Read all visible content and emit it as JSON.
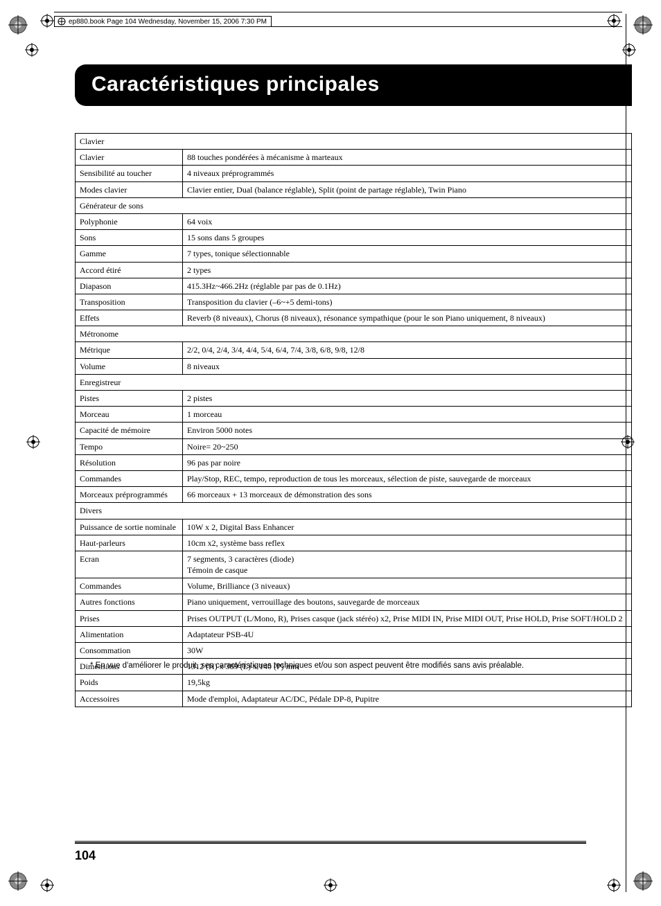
{
  "header_text": "ep880.book  Page 104  Wednesday, November 15, 2006  7:30 PM",
  "title": "Caractéristiques principales",
  "sections": [
    {
      "header": "Clavier",
      "rows": [
        {
          "label": "Clavier",
          "value": "88 touches pondérées à mécanisme à marteaux"
        },
        {
          "label": "Sensibilité au toucher",
          "value": "4 niveaux préprogrammés"
        },
        {
          "label": "Modes clavier",
          "value": "Clavier entier, Dual (balance réglable), Split (point de partage réglable), Twin Piano"
        }
      ]
    },
    {
      "header": "Générateur de sons",
      "rows": [
        {
          "label": "Polyphonie",
          "value": "64 voix"
        },
        {
          "label": "Sons",
          "value": "15 sons dans 5 groupes"
        },
        {
          "label": "Gamme",
          "value": "7 types, tonique sélectionnable"
        },
        {
          "label": "Accord étiré",
          "value": "2 types"
        },
        {
          "label": "Diapason",
          "value": "415.3Hz~466.2Hz (réglable par pas de 0.1Hz)"
        },
        {
          "label": "Transposition",
          "value": "Transposition du clavier (–6~+5 demi-tons)"
        },
        {
          "label": "Effets",
          "value": "Reverb (8 niveaux), Chorus (8 niveaux), résonance sympathique (pour le son Piano uniquement, 8 niveaux)"
        }
      ]
    },
    {
      "header": "Métronome",
      "rows": [
        {
          "label": "Métrique",
          "value": "2/2, 0/4, 2/4, 3/4, 4/4, 5/4, 6/4, 7/4, 3/8, 6/8, 9/8, 12/8"
        },
        {
          "label": "Volume",
          "value": "8 niveaux"
        }
      ]
    },
    {
      "header": "Enregistreur",
      "rows": [
        {
          "label": "Pistes",
          "value": "2 pistes"
        },
        {
          "label": "Morceau",
          "value": "1 morceau"
        },
        {
          "label": "Capacité de mémoire",
          "value": "Environ 5000 notes"
        },
        {
          "label": "Tempo",
          "value": "Noire= 20~250"
        },
        {
          "label": "Résolution",
          "value": "96 pas par noire"
        },
        {
          "label": "Commandes",
          "value": "Play/Stop, REC, tempo, reproduction de tous les morceaux, sélection de piste, sauvegarde de morceaux"
        },
        {
          "label": "Morceaux préprogrammés",
          "value": "66 morceaux + 13 morceaux de démonstration des sons"
        }
      ]
    },
    {
      "header": "Divers",
      "rows": [
        {
          "label": "Puissance de sortie nominale",
          "value": "10W x 2, Digital Bass Enhancer"
        },
        {
          "label": "Haut-parleurs",
          "value": "10cm x2, système bass reflex"
        },
        {
          "label": "Ecran",
          "value": "7 segments, 3 caractères (diode)\nTémoin de casque"
        },
        {
          "label": "Commandes",
          "value": "Volume, Brilliance (3 niveaux)"
        },
        {
          "label": "Autres fonctions",
          "value": "Piano uniquement, verrouillage des boutons, sauvegarde de morceaux"
        },
        {
          "label": "Prises",
          "value": "Prises OUTPUT (L/Mono, R), Prises casque (jack stéréo) x2, Prise MIDI IN, Prise MIDI OUT, Prise HOLD, Prise SOFT/HOLD 2"
        },
        {
          "label": "Alimentation",
          "value": "Adaptateur PSB-4U"
        },
        {
          "label": "Consommation",
          "value": "30W"
        },
        {
          "label": "Dimensions",
          "value": "1312 (H) x 389 (L) x 140 (P) mm"
        },
        {
          "label": "Poids",
          "value": "19,5kg"
        },
        {
          "label": "Accessoires",
          "value": "Mode d'emploi, Adaptateur AC/DC, Pédale DP-8, Pupitre"
        }
      ]
    }
  ],
  "footnote": "*    En vue d'améliorer le produit, ses caractéristiques techniques et/ou son aspect peuvent être modifiés sans avis préalable.",
  "page_number": "104",
  "cropmarks": {
    "circle_fill_outer": "#6b6b6b",
    "line_color": "#000000"
  }
}
